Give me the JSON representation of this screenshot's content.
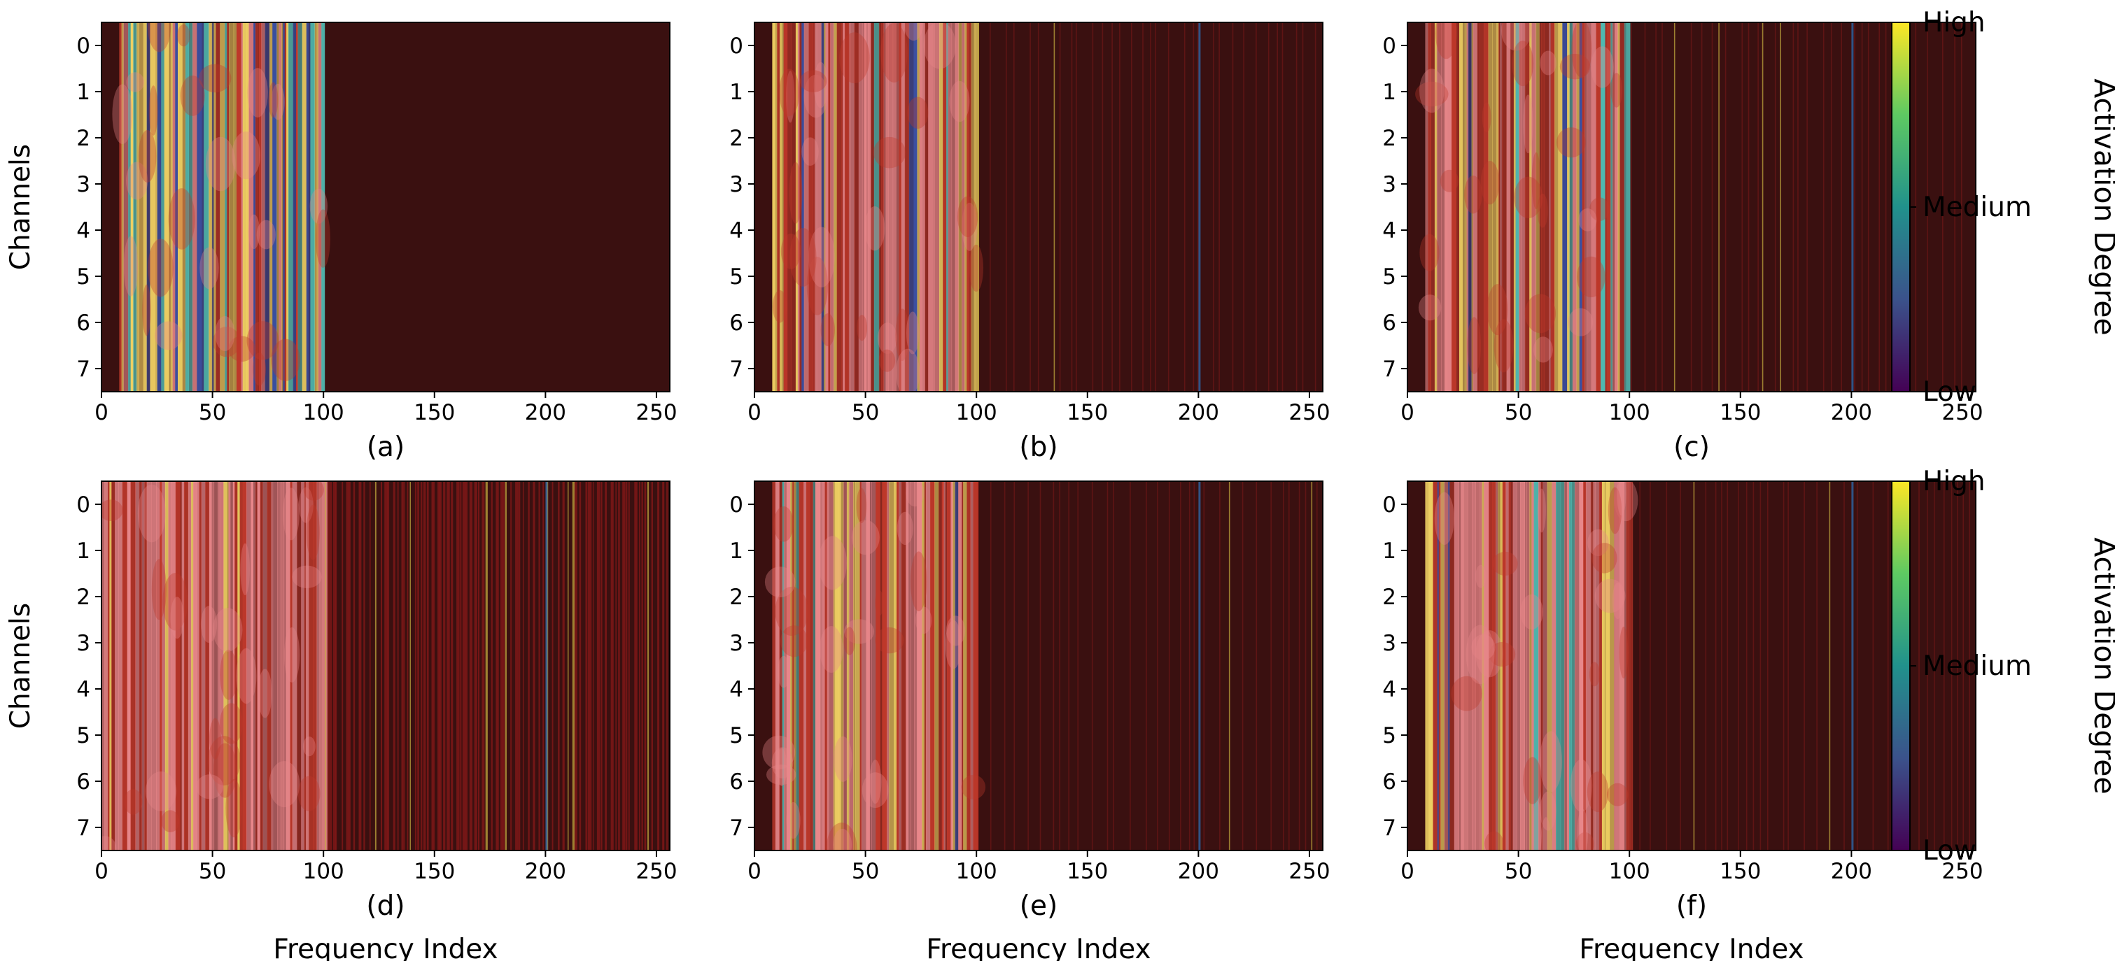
{
  "chart_data": {
    "type": "heatmap",
    "panels": [
      {
        "id": "a",
        "label": "(a)",
        "variant": "clean_low_band"
      },
      {
        "id": "b",
        "label": "(b)",
        "variant": "sharp_low_band"
      },
      {
        "id": "c",
        "label": "(c)",
        "variant": "sharp_low_band_with_stripes"
      },
      {
        "id": "d",
        "label": "(d)",
        "variant": "diffuse_with_stripes"
      },
      {
        "id": "e",
        "label": "(e)",
        "variant": "sharp_low_band_with_stripes"
      },
      {
        "id": "f",
        "label": "(f)",
        "variant": "sharp_low_band_with_stripes"
      }
    ],
    "rows": 2,
    "cols": 3,
    "x_axis": {
      "label": "Frequency Index",
      "range": [
        0,
        256
      ],
      "ticks": [
        0,
        50,
        100,
        150,
        200,
        250
      ]
    },
    "y_axis": {
      "label": "Channels",
      "ticks": [
        0,
        1,
        2,
        3,
        4,
        5,
        6,
        7
      ]
    },
    "low_band_cutoff": 100,
    "colorbar": {
      "title": "Activation Degree",
      "labels": [
        "High",
        "Medium",
        "Low"
      ],
      "colors": [
        "#440154",
        "#3b528b",
        "#21918c",
        "#5ec962",
        "#fde725"
      ]
    },
    "heatmap_palette": {
      "background": "#3a1010",
      "band_warm": "#c0392b",
      "band_pink": "#e8878a",
      "band_yellow": "#f0d264",
      "band_teal": "#4fb8b0",
      "band_blue": "#3b4fa0",
      "stripe_yellow": "#c8b040",
      "stripe_red": "#8b1a1a",
      "stripe_blue": "#2f5f9a"
    }
  }
}
